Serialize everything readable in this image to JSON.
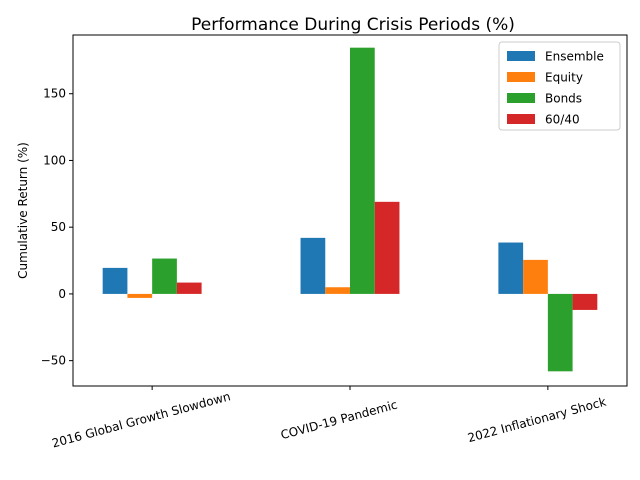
{
  "chart_data": {
    "type": "bar",
    "title": "Performance During Crisis Periods (%)",
    "xlabel": "",
    "ylabel": "Cumulative Return (%)",
    "categories": [
      "2016 Global Growth Slowdown",
      "COVID-19 Pandemic",
      "2022 Inflationary Shock"
    ],
    "series": [
      {
        "name": "Ensemble",
        "color": "#1f77b4",
        "values": [
          19.5,
          42,
          38.5
        ]
      },
      {
        "name": "Equity",
        "color": "#ff7f0e",
        "values": [
          -3,
          5,
          25.5
        ]
      },
      {
        "name": "Bonds",
        "color": "#2ca02c",
        "values": [
          26.5,
          184.5,
          -58
        ]
      },
      {
        "name": "60/40",
        "color": "#d62728",
        "values": [
          8.5,
          69,
          -12
        ]
      }
    ],
    "ylim": [
      -69,
      194
    ],
    "yticks": [
      -50,
      0,
      50,
      100,
      150
    ],
    "grid": false,
    "legend_position": "top-right"
  }
}
